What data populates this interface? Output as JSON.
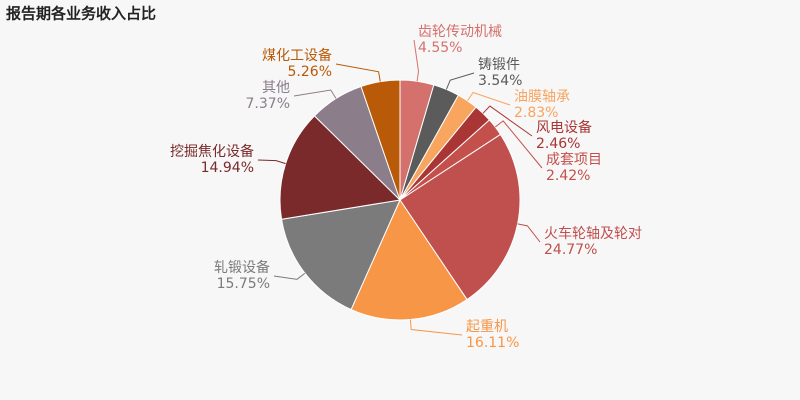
{
  "chart_data": {
    "type": "pie",
    "title": "报告期各业务收入占比",
    "categories": [
      "齿轮传动机械",
      "铸锻件",
      "油膜轴承",
      "风电设备",
      "成套项目",
      "火车轮轴及轮对",
      "起重机",
      "轧锻设备",
      "挖掘焦化设备",
      "其他",
      "煤化工设备"
    ],
    "values": [
      4.55,
      3.54,
      2.83,
      2.46,
      2.42,
      24.77,
      16.11,
      15.75,
      14.94,
      7.37,
      5.26
    ],
    "value_labels": [
      "4.55%",
      "3.54%",
      "2.83%",
      "2.46%",
      "2.42%",
      "24.77%",
      "16.11%",
      "15.75%",
      "14.94%",
      "7.37%",
      "5.26%"
    ],
    "colors": [
      "#d4716d",
      "#5b5b5b",
      "#f8a55f",
      "#a93535",
      "#c4504c",
      "#c0504d",
      "#f79646",
      "#7b7b7b",
      "#7a2a2a",
      "#8c7d8b",
      "#b95a08"
    ]
  }
}
